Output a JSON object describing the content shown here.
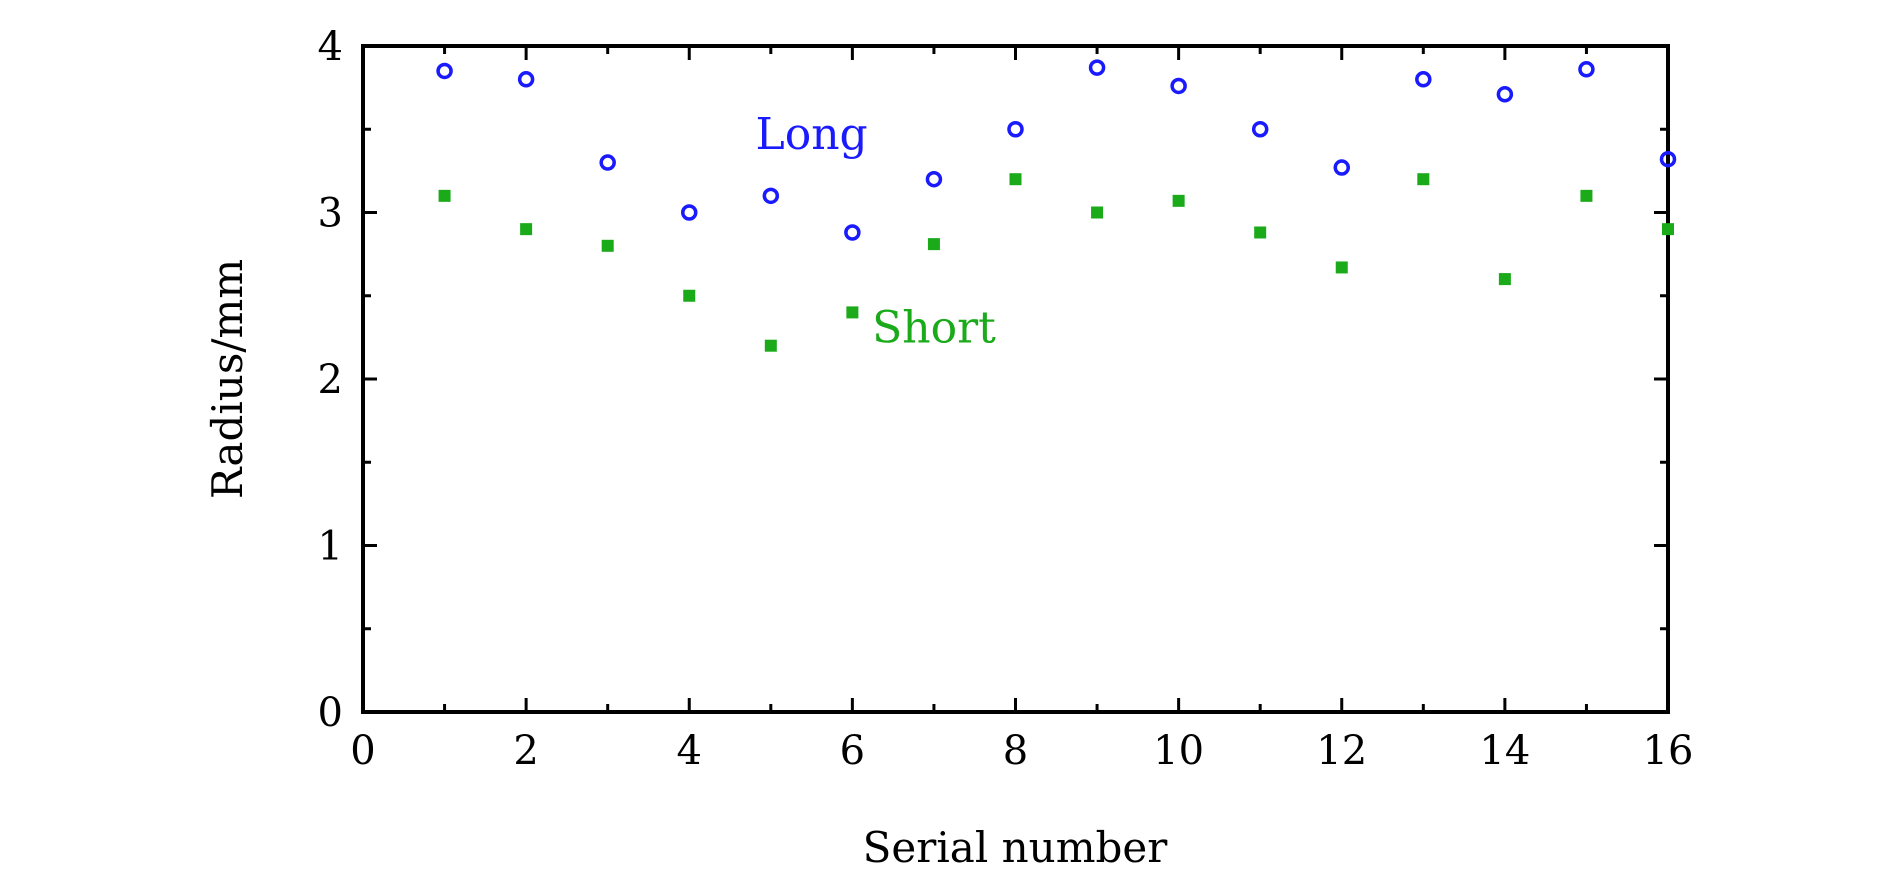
{
  "chart_data": {
    "type": "scatter",
    "title": "",
    "xlabel": "Serial number",
    "ylabel": "Radius/mm",
    "xlim": [
      0,
      16
    ],
    "ylim": [
      0,
      4
    ],
    "xticks": [
      "0",
      "2",
      "4",
      "6",
      "8",
      "10",
      "12",
      "14",
      "16"
    ],
    "yticks": [
      "0",
      "1",
      "2",
      "3",
      "4"
    ],
    "grid": false,
    "series": [
      {
        "name": "Long",
        "marker": "open-circle",
        "color": "#1a1aff",
        "x": [
          1,
          2,
          3,
          4,
          5,
          6,
          7,
          8,
          9,
          10,
          11,
          12,
          13,
          14,
          15,
          16
        ],
        "y": [
          3.85,
          3.8,
          3.3,
          3.0,
          3.1,
          2.88,
          3.2,
          3.5,
          3.87,
          3.76,
          3.5,
          3.27,
          3.8,
          3.71,
          3.86,
          3.32
        ]
      },
      {
        "name": "Short",
        "marker": "filled-square",
        "color": "#1aaa1a",
        "x": [
          1,
          2,
          3,
          4,
          5,
          6,
          7,
          8,
          9,
          10,
          11,
          12,
          13,
          14,
          15,
          16
        ],
        "y": [
          3.1,
          2.9,
          2.8,
          2.5,
          2.2,
          2.4,
          2.81,
          3.2,
          3.0,
          3.07,
          2.88,
          2.67,
          3.2,
          2.6,
          3.1,
          2.9
        ]
      }
    ],
    "annotations": [
      {
        "text": "Long",
        "series": 0,
        "x": 5.5,
        "y": 3.38
      },
      {
        "text": "Short",
        "series": 1,
        "x": 7.0,
        "y": 2.22
      }
    ]
  }
}
